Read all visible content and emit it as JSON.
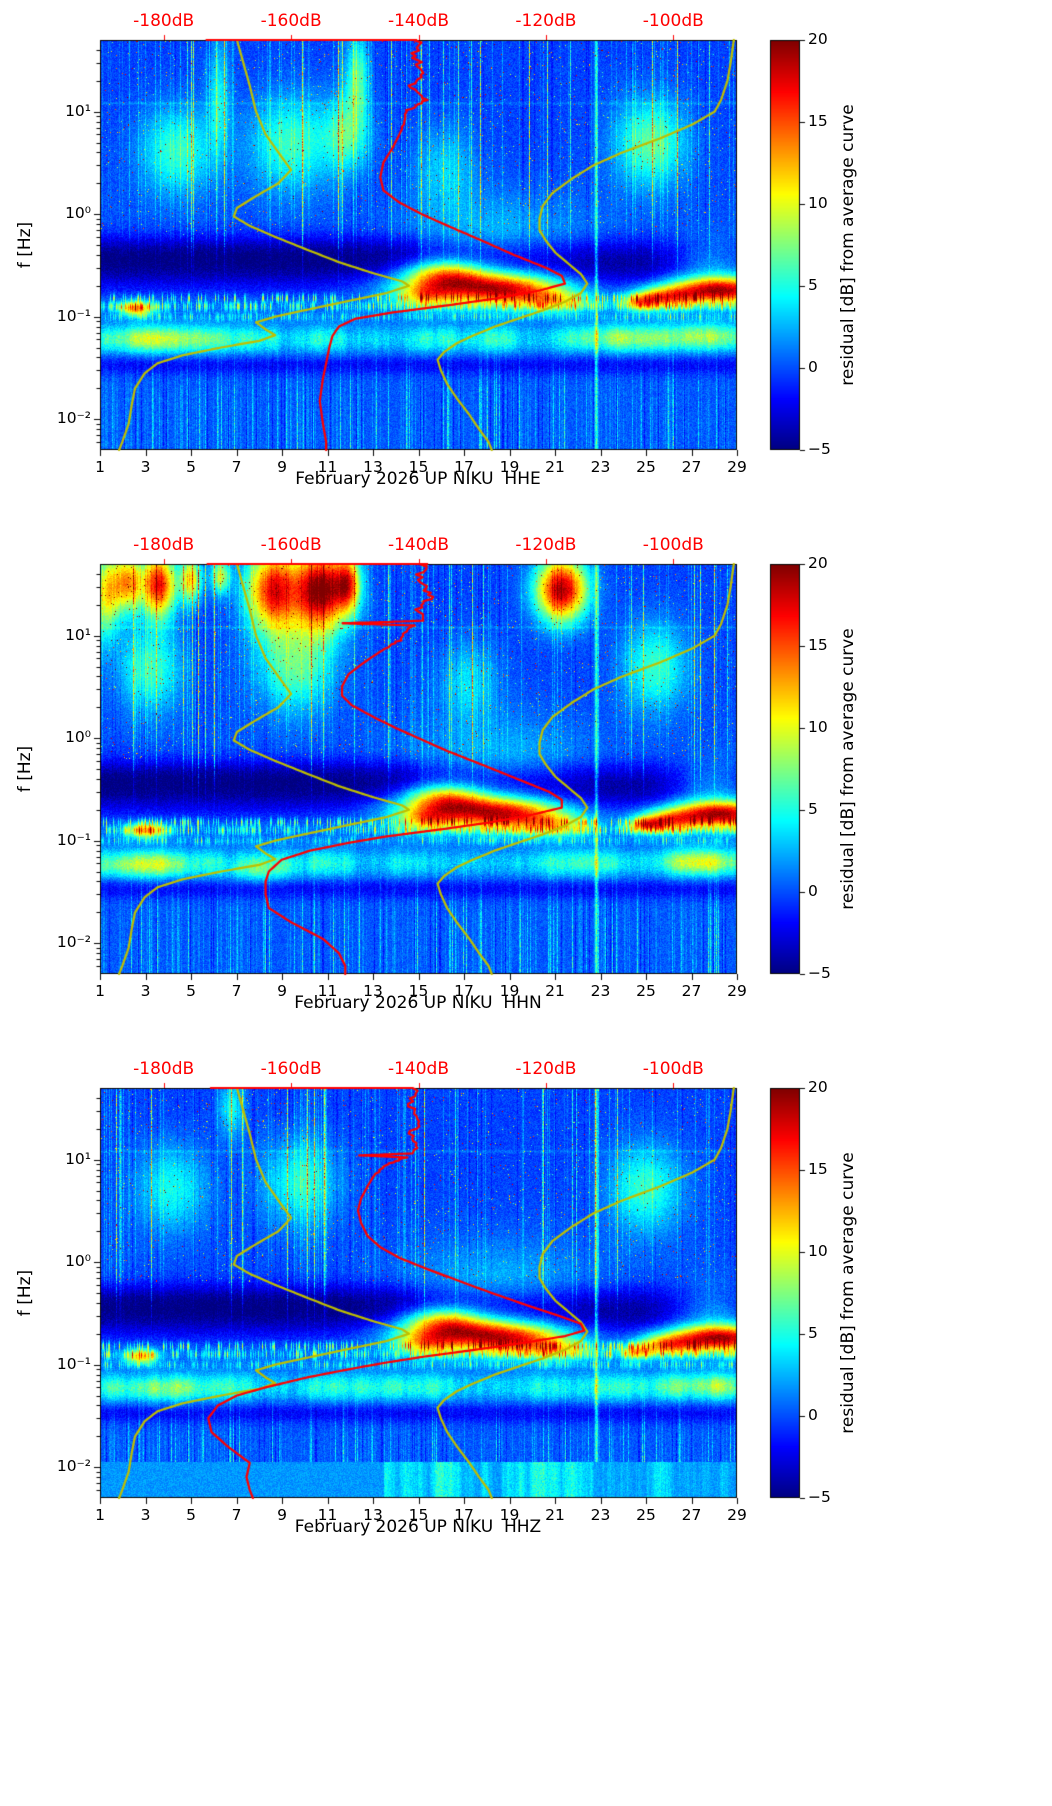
{
  "axes": {
    "ylabel": "f [Hz]",
    "x_tick_values": [
      1,
      3,
      5,
      7,
      9,
      11,
      13,
      15,
      17,
      19,
      21,
      23,
      25,
      27,
      29
    ],
    "y_tick_labels": [
      "10¹",
      "10⁰",
      "10⁻¹",
      "10⁻²"
    ],
    "y_tick_values": [
      10,
      1,
      0.1,
      0.01
    ]
  },
  "chart_data": {
    "type": "heatmap",
    "note": "Three PSD-residual spectrograms (channels HHE, HHN, HHZ) of station UP NIKU for February 2026; color = residual [dB] from average curve; red overlay = average PSD curve on top dB axis; yellow overlays = low/high noise model curves.",
    "shared": {
      "x": {
        "range_days": [
          1,
          29
        ]
      },
      "y": {
        "label": "f [Hz]",
        "scale": "log",
        "range_hz": [
          0.005,
          50
        ],
        "tick_hz": [
          10,
          1,
          0.1,
          0.01
        ]
      },
      "color": {
        "map": "jet",
        "vmin": -5,
        "vmax": 20,
        "bar_label": "residual [dB] from average curve",
        "bar_tick_labels": [
          "20",
          "15",
          "10",
          "5",
          "0",
          "−5"
        ],
        "bar_tick_values": [
          20,
          15,
          10,
          5,
          0,
          -5
        ]
      },
      "top_axis_db": {
        "range": [
          -190,
          -90
        ],
        "tick_values": [
          -180,
          -160,
          -140,
          -120,
          -100
        ],
        "tick_labels": [
          "-180dB",
          "-160dB",
          "-140dB",
          "-120dB",
          "-100dB"
        ],
        "color": "#ff0000"
      },
      "average_psd_color": "#ff0000",
      "noise_models": {
        "color": "#bfbf00",
        "low_freq_db": [
          [
            50,
            -168.5
          ],
          [
            30,
            -167.5
          ],
          [
            18,
            -166.5
          ],
          [
            10,
            -165.5
          ],
          [
            6,
            -164
          ],
          [
            4,
            -162
          ],
          [
            2.7,
            -160
          ],
          [
            2.0,
            -162
          ],
          [
            1.5,
            -165.5
          ],
          [
            1.15,
            -168.5
          ],
          [
            0.95,
            -169
          ],
          [
            0.77,
            -166.5
          ],
          [
            0.6,
            -162.5
          ],
          [
            0.45,
            -157.5
          ],
          [
            0.34,
            -152.5
          ],
          [
            0.27,
            -147.5
          ],
          [
            0.22,
            -142.5
          ],
          [
            0.2,
            -141.5
          ],
          [
            0.17,
            -145
          ],
          [
            0.14,
            -151.5
          ],
          [
            0.115,
            -158
          ],
          [
            0.1,
            -162.5
          ],
          [
            0.088,
            -165.5
          ],
          [
            0.075,
            -164
          ],
          [
            0.066,
            -162.5
          ],
          [
            0.058,
            -165
          ],
          [
            0.05,
            -171
          ],
          [
            0.042,
            -177
          ],
          [
            0.035,
            -181
          ],
          [
            0.028,
            -183
          ],
          [
            0.02,
            -184.5
          ],
          [
            0.014,
            -185
          ],
          [
            0.009,
            -185.5
          ],
          [
            0.006,
            -186.5
          ],
          [
            0.005,
            -187
          ]
        ],
        "high_freq_db": [
          [
            50,
            -90.5
          ],
          [
            30,
            -91
          ],
          [
            20,
            -91.5
          ],
          [
            13,
            -92.5
          ],
          [
            10,
            -93.5
          ],
          [
            7.5,
            -97
          ],
          [
            5.5,
            -102
          ],
          [
            4,
            -108
          ],
          [
            3,
            -112.5
          ],
          [
            2.2,
            -116
          ],
          [
            1.6,
            -119
          ],
          [
            1.2,
            -120.5
          ],
          [
            0.9,
            -121
          ],
          [
            0.7,
            -121
          ],
          [
            0.55,
            -120
          ],
          [
            0.42,
            -118.5
          ],
          [
            0.33,
            -116.5
          ],
          [
            0.26,
            -114.5
          ],
          [
            0.21,
            -113.5
          ],
          [
            0.17,
            -114.5
          ],
          [
            0.14,
            -117
          ],
          [
            0.115,
            -120.5
          ],
          [
            0.095,
            -124.5
          ],
          [
            0.08,
            -128
          ],
          [
            0.065,
            -131.5
          ],
          [
            0.055,
            -134
          ],
          [
            0.045,
            -136
          ],
          [
            0.038,
            -137
          ],
          [
            0.03,
            -136.5
          ],
          [
            0.022,
            -135.5
          ],
          [
            0.016,
            -134
          ],
          [
            0.011,
            -132
          ],
          [
            0.008,
            -130.5
          ],
          [
            0.006,
            -129
          ],
          [
            0.005,
            -128.5
          ]
        ]
      },
      "background_bands": [
        {
          "log10f_center": -0.5,
          "sigma": 0.16,
          "amp_db": -4.6
        },
        {
          "log10f_center": -0.33,
          "sigma": 0.1,
          "amp_db": -1.6
        },
        {
          "log10f_center": -1.47,
          "sigma": 0.07,
          "amp_db": -2.2
        },
        {
          "log10f_center": -1.22,
          "sigma": 0.1,
          "amp_db": 1.6
        }
      ],
      "hotspots": [
        [
          17.4,
          -0.7,
          2.3,
          0.11,
          15
        ],
        [
          16.1,
          -0.57,
          1.2,
          0.1,
          10
        ],
        [
          19.6,
          -0.77,
          1.6,
          0.1,
          8
        ],
        [
          21.2,
          -0.86,
          1.0,
          0.07,
          6
        ],
        [
          15.3,
          -0.8,
          0.8,
          0.08,
          7
        ],
        [
          28.3,
          -0.74,
          1.7,
          0.09,
          18
        ],
        [
          25.9,
          -0.81,
          0.9,
          0.07,
          10
        ],
        [
          28.0,
          -0.5,
          1.4,
          0.18,
          6
        ],
        [
          18.5,
          -0.28,
          2.8,
          0.33,
          3
        ]
      ],
      "bright_column_day": 22.82
    },
    "panels": [
      {
        "channel": "HHE",
        "xlabel": "February 2026 UP NIKU  HHE",
        "average_psd_freq_db": [
          [
            50,
            -173
          ],
          [
            50,
            -140
          ],
          [
            35,
            -141
          ],
          [
            25,
            -139
          ],
          [
            18,
            -141
          ],
          [
            13,
            -139
          ],
          [
            10,
            -142
          ],
          [
            8,
            -142
          ],
          [
            6,
            -143
          ],
          [
            4.5,
            -144
          ],
          [
            3.2,
            -145.5
          ],
          [
            2.3,
            -146
          ],
          [
            1.7,
            -145.5
          ],
          [
            1.3,
            -143
          ],
          [
            1.0,
            -139.5
          ],
          [
            0.75,
            -135
          ],
          [
            0.55,
            -130
          ],
          [
            0.4,
            -125
          ],
          [
            0.3,
            -120
          ],
          [
            0.25,
            -117.5
          ],
          [
            0.21,
            -117
          ],
          [
            0.18,
            -121
          ],
          [
            0.15,
            -128
          ],
          [
            0.13,
            -135
          ],
          [
            0.11,
            -144
          ],
          [
            0.095,
            -150
          ],
          [
            0.08,
            -152.5
          ],
          [
            0.065,
            -153.5
          ],
          [
            0.05,
            -154
          ],
          [
            0.035,
            -154.5
          ],
          [
            0.025,
            -155
          ],
          [
            0.015,
            -155.5
          ],
          [
            0.009,
            -155
          ],
          [
            0.006,
            -154.5
          ],
          [
            0.005,
            -154.5
          ]
        ],
        "hotspots": [
          [
            4.4,
            0.62,
            1.1,
            0.3,
            6
          ],
          [
            9.4,
            0.7,
            1.3,
            0.32,
            6
          ],
          [
            11.9,
            0.78,
            0.7,
            0.26,
            6
          ],
          [
            6.2,
            1.15,
            0.35,
            0.4,
            4.5
          ],
          [
            12.3,
            1.35,
            0.35,
            0.3,
            7
          ],
          [
            16.2,
            0.45,
            0.9,
            0.3,
            3.5
          ],
          [
            25.2,
            0.7,
            1.1,
            0.3,
            7
          ],
          [
            2.6,
            -0.92,
            0.5,
            0.05,
            13
          ],
          [
            24.8,
            -0.86,
            0.6,
            0.06,
            10
          ],
          [
            3.4,
            -1.22,
            1.6,
            0.09,
            4.5
          ],
          [
            23.2,
            -1.2,
            1.2,
            0.09,
            3.5
          ],
          [
            27.6,
            -1.18,
            1.5,
            0.09,
            4.5
          ]
        ]
      },
      {
        "channel": "HHN",
        "xlabel": "February 2026 UP NIKU  HHN",
        "average_psd_freq_db": [
          [
            50,
            -173
          ],
          [
            50,
            -139
          ],
          [
            35,
            -140
          ],
          [
            25,
            -138
          ],
          [
            18,
            -140
          ],
          [
            14,
            -139
          ],
          [
            13.2,
            -152
          ],
          [
            12.6,
            -141
          ],
          [
            11,
            -142
          ],
          [
            9,
            -143
          ],
          [
            7,
            -146
          ],
          [
            5.5,
            -148.5
          ],
          [
            4.2,
            -151
          ],
          [
            3.2,
            -152
          ],
          [
            2.6,
            -152
          ],
          [
            2.1,
            -150.5
          ],
          [
            1.6,
            -147
          ],
          [
            1.25,
            -143.5
          ],
          [
            1.0,
            -140
          ],
          [
            0.75,
            -135.5
          ],
          [
            0.55,
            -130
          ],
          [
            0.4,
            -124.5
          ],
          [
            0.3,
            -119.5
          ],
          [
            0.25,
            -117.5
          ],
          [
            0.21,
            -117.5
          ],
          [
            0.18,
            -122
          ],
          [
            0.15,
            -129
          ],
          [
            0.13,
            -136
          ],
          [
            0.11,
            -145
          ],
          [
            0.095,
            -151
          ],
          [
            0.08,
            -157
          ],
          [
            0.065,
            -161.5
          ],
          [
            0.05,
            -163.5
          ],
          [
            0.04,
            -164
          ],
          [
            0.03,
            -164
          ],
          [
            0.022,
            -163.5
          ],
          [
            0.016,
            -160
          ],
          [
            0.011,
            -155
          ],
          [
            0.008,
            -152.5
          ],
          [
            0.006,
            -151.5
          ],
          [
            0.005,
            -151.5
          ]
        ],
        "hotspots": [
          [
            1.3,
            1.4,
            0.4,
            0.3,
            10
          ],
          [
            2.2,
            1.52,
            0.5,
            0.2,
            13
          ],
          [
            3.6,
            1.5,
            0.5,
            0.22,
            17
          ],
          [
            5.0,
            1.55,
            0.35,
            0.16,
            11
          ],
          [
            6.3,
            1.58,
            0.3,
            0.12,
            9
          ],
          [
            8.6,
            1.45,
            0.8,
            0.28,
            17
          ],
          [
            10.7,
            1.45,
            0.8,
            0.28,
            20
          ],
          [
            11.9,
            1.5,
            0.4,
            0.2,
            13
          ],
          [
            21.3,
            1.45,
            0.8,
            0.22,
            19
          ],
          [
            3.2,
            0.68,
            1.0,
            0.3,
            6
          ],
          [
            9.6,
            0.72,
            1.2,
            0.32,
            7
          ],
          [
            25.4,
            0.7,
            1.0,
            0.3,
            6
          ],
          [
            17.2,
            0.55,
            0.9,
            0.28,
            4
          ],
          [
            3.0,
            -0.9,
            0.6,
            0.05,
            12
          ],
          [
            25.0,
            -0.85,
            0.5,
            0.05,
            10
          ],
          [
            3.0,
            -1.24,
            1.5,
            0.09,
            5
          ],
          [
            8.0,
            -1.3,
            0.9,
            0.08,
            3.5
          ],
          [
            27.5,
            -1.2,
            1.4,
            0.09,
            4.5
          ]
        ]
      },
      {
        "channel": "HHZ",
        "xlabel": "February 2026 UP NIKU  HHZ",
        "average_psd_freq_db": [
          [
            50,
            -173
          ],
          [
            50,
            -141
          ],
          [
            35,
            -141
          ],
          [
            25,
            -140
          ],
          [
            18,
            -141
          ],
          [
            13,
            -140
          ],
          [
            11.5,
            -141
          ],
          [
            11,
            -149
          ],
          [
            10.5,
            -142
          ],
          [
            9,
            -145
          ],
          [
            7,
            -147
          ],
          [
            5.5,
            -148
          ],
          [
            4.2,
            -149
          ],
          [
            3.2,
            -149.5
          ],
          [
            2.4,
            -149
          ],
          [
            1.8,
            -148
          ],
          [
            1.4,
            -146
          ],
          [
            1.1,
            -143
          ],
          [
            0.85,
            -138.5
          ],
          [
            0.65,
            -133.5
          ],
          [
            0.5,
            -128.5
          ],
          [
            0.38,
            -123
          ],
          [
            0.3,
            -118
          ],
          [
            0.25,
            -114.5
          ],
          [
            0.215,
            -114
          ],
          [
            0.19,
            -117
          ],
          [
            0.165,
            -123
          ],
          [
            0.14,
            -131
          ],
          [
            0.12,
            -139
          ],
          [
            0.105,
            -145
          ],
          [
            0.09,
            -151
          ],
          [
            0.075,
            -157.5
          ],
          [
            0.06,
            -164
          ],
          [
            0.05,
            -168.5
          ],
          [
            0.04,
            -171.5
          ],
          [
            0.03,
            -173
          ],
          [
            0.022,
            -172.5
          ],
          [
            0.016,
            -170
          ],
          [
            0.011,
            -166.5
          ],
          [
            0.008,
            -167
          ],
          [
            0.006,
            -166.5
          ],
          [
            0.005,
            -166
          ]
        ],
        "hotspots": [
          [
            4.2,
            0.72,
            1.1,
            0.3,
            5
          ],
          [
            9.8,
            0.78,
            1.2,
            0.3,
            5.5
          ],
          [
            6.8,
            1.5,
            0.4,
            0.2,
            5
          ],
          [
            25.0,
            0.72,
            1.1,
            0.3,
            6
          ],
          [
            2.8,
            -0.92,
            0.5,
            0.05,
            11
          ],
          [
            24.6,
            -0.88,
            0.5,
            0.05,
            9
          ],
          [
            3.4,
            -1.24,
            1.4,
            0.09,
            3.5
          ],
          [
            27.6,
            -1.2,
            1.4,
            0.09,
            4
          ]
        ],
        "bottom_strip": {
          "below_hz": 0.011,
          "base_residual_db": 1.5,
          "patchy_after_day": 14
        }
      }
    ]
  }
}
